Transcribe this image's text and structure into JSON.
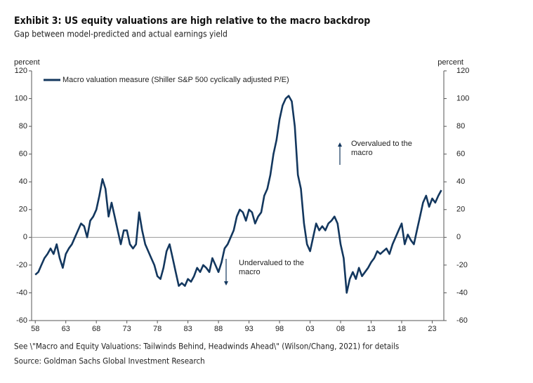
{
  "chart_data": {
    "type": "line",
    "title": "Exhibit 3: US equity valuations are high relative to the macro backdrop",
    "subtitle": "Gap between model-predicted and actual earnings yield",
    "ylabel": "percent",
    "y2label": "percent",
    "notes": [
      "See \\\"Macro and Equity Valuations: Tailwinds Behind, Headwinds Ahead\\\" (Wilson/Chang, 2021) for details",
      "Source: Goldman Sachs Global Investment Research"
    ],
    "annotations": [
      {
        "lines": [
          "Overvalued to the",
          "macro"
        ],
        "direction": "up"
      },
      {
        "lines": [
          "Undervalued to the",
          "macro"
        ],
        "direction": "down"
      }
    ],
    "xlim": [
      1957.4,
      2024.9
    ],
    "xticks": [
      {
        "value": 1958,
        "label": "58"
      },
      {
        "value": 1963,
        "label": "63"
      },
      {
        "value": 1968,
        "label": "68"
      },
      {
        "value": 1973,
        "label": "73"
      },
      {
        "value": 1978,
        "label": "78"
      },
      {
        "value": 1983,
        "label": "83"
      },
      {
        "value": 1988,
        "label": "88"
      },
      {
        "value": 1993,
        "label": "93"
      },
      {
        "value": 1998,
        "label": "98"
      },
      {
        "value": 2003,
        "label": "03"
      },
      {
        "value": 2008,
        "label": "08"
      },
      {
        "value": 2013,
        "label": "13"
      },
      {
        "value": 2018,
        "label": "18"
      },
      {
        "value": 2023,
        "label": "23"
      }
    ],
    "ylim": [
      -60,
      120
    ],
    "yticks": [
      -60,
      -40,
      -20,
      0,
      20,
      40,
      60,
      80,
      100,
      120
    ],
    "y2lim": [
      -60,
      120
    ],
    "y2ticks": [
      -60,
      -40,
      -20,
      0,
      20,
      40,
      60,
      80,
      100,
      120
    ],
    "legend": "upper left",
    "x": [
      1958,
      1958.5,
      1959,
      1959.5,
      1960,
      1960.5,
      1961,
      1961.5,
      1962,
      1962.5,
      1963,
      1963.5,
      1964,
      1964.5,
      1965,
      1965.5,
      1966,
      1966.5,
      1967,
      1967.5,
      1968,
      1968.5,
      1969,
      1969.5,
      1970,
      1970.5,
      1971,
      1971.5,
      1972,
      1972.5,
      1973,
      1973.5,
      1974,
      1974.5,
      1975,
      1975.5,
      1976,
      1976.5,
      1977,
      1977.5,
      1978,
      1978.5,
      1979,
      1979.5,
      1980,
      1980.5,
      1981,
      1981.5,
      1982,
      1982.5,
      1983,
      1983.5,
      1984,
      1984.5,
      1985,
      1985.5,
      1986,
      1986.5,
      1987,
      1987.5,
      1988,
      1988.5,
      1989,
      1989.5,
      1990,
      1990.5,
      1991,
      1991.5,
      1992,
      1992.5,
      1993,
      1993.5,
      1994,
      1994.5,
      1995,
      1995.5,
      1996,
      1996.5,
      1997,
      1997.5,
      1998,
      1998.5,
      1999,
      1999.5,
      2000,
      2000.5,
      2001,
      2001.5,
      2002,
      2002.5,
      2003,
      2003.5,
      2004,
      2004.5,
      2005,
      2005.5,
      2006,
      2006.5,
      2007,
      2007.5,
      2008,
      2008.5,
      2009,
      2009.5,
      2010,
      2010.5,
      2011,
      2011.5,
      2012,
      2012.5,
      2013,
      2013.5,
      2014,
      2014.5,
      2015,
      2015.5,
      2016,
      2016.5,
      2017,
      2017.5,
      2018,
      2018.5,
      2019,
      2019.5,
      2020,
      2020.5,
      2021,
      2021.5,
      2022,
      2022.5,
      2023,
      2023.5,
      2024,
      2024.5
    ],
    "series": [
      {
        "name": "Macro valuation measure (Shiller S&P 500 cyclically adjusted P/E)",
        "color": "#13375e",
        "values": [
          -27,
          -25,
          -20,
          -15,
          -12,
          -8,
          -12,
          -5,
          -15,
          -22,
          -12,
          -8,
          -5,
          0,
          5,
          10,
          8,
          0,
          12,
          15,
          20,
          30,
          42,
          35,
          15,
          25,
          15,
          5,
          -5,
          5,
          5,
          -5,
          -8,
          -5,
          18,
          5,
          -5,
          -10,
          -15,
          -20,
          -28,
          -30,
          -22,
          -10,
          -5,
          -15,
          -25,
          -35,
          -33,
          -35,
          -30,
          -32,
          -28,
          -22,
          -25,
          -20,
          -22,
          -25,
          -15,
          -20,
          -25,
          -18,
          -8,
          -5,
          0,
          5,
          15,
          20,
          18,
          12,
          20,
          18,
          10,
          15,
          18,
          30,
          35,
          45,
          60,
          70,
          85,
          95,
          100,
          102,
          98,
          80,
          45,
          35,
          10,
          -5,
          -10,
          0,
          10,
          5,
          8,
          5,
          10,
          12,
          15,
          10,
          -5,
          -15,
          -40,
          -30,
          -25,
          -30,
          -22,
          -28,
          -25,
          -22,
          -18,
          -15,
          -10,
          -12,
          -10,
          -8,
          -12,
          -5,
          0,
          5,
          10,
          -5,
          2,
          -2,
          -5,
          5,
          15,
          25,
          30,
          22,
          28,
          25,
          30,
          34
        ]
      }
    ]
  }
}
